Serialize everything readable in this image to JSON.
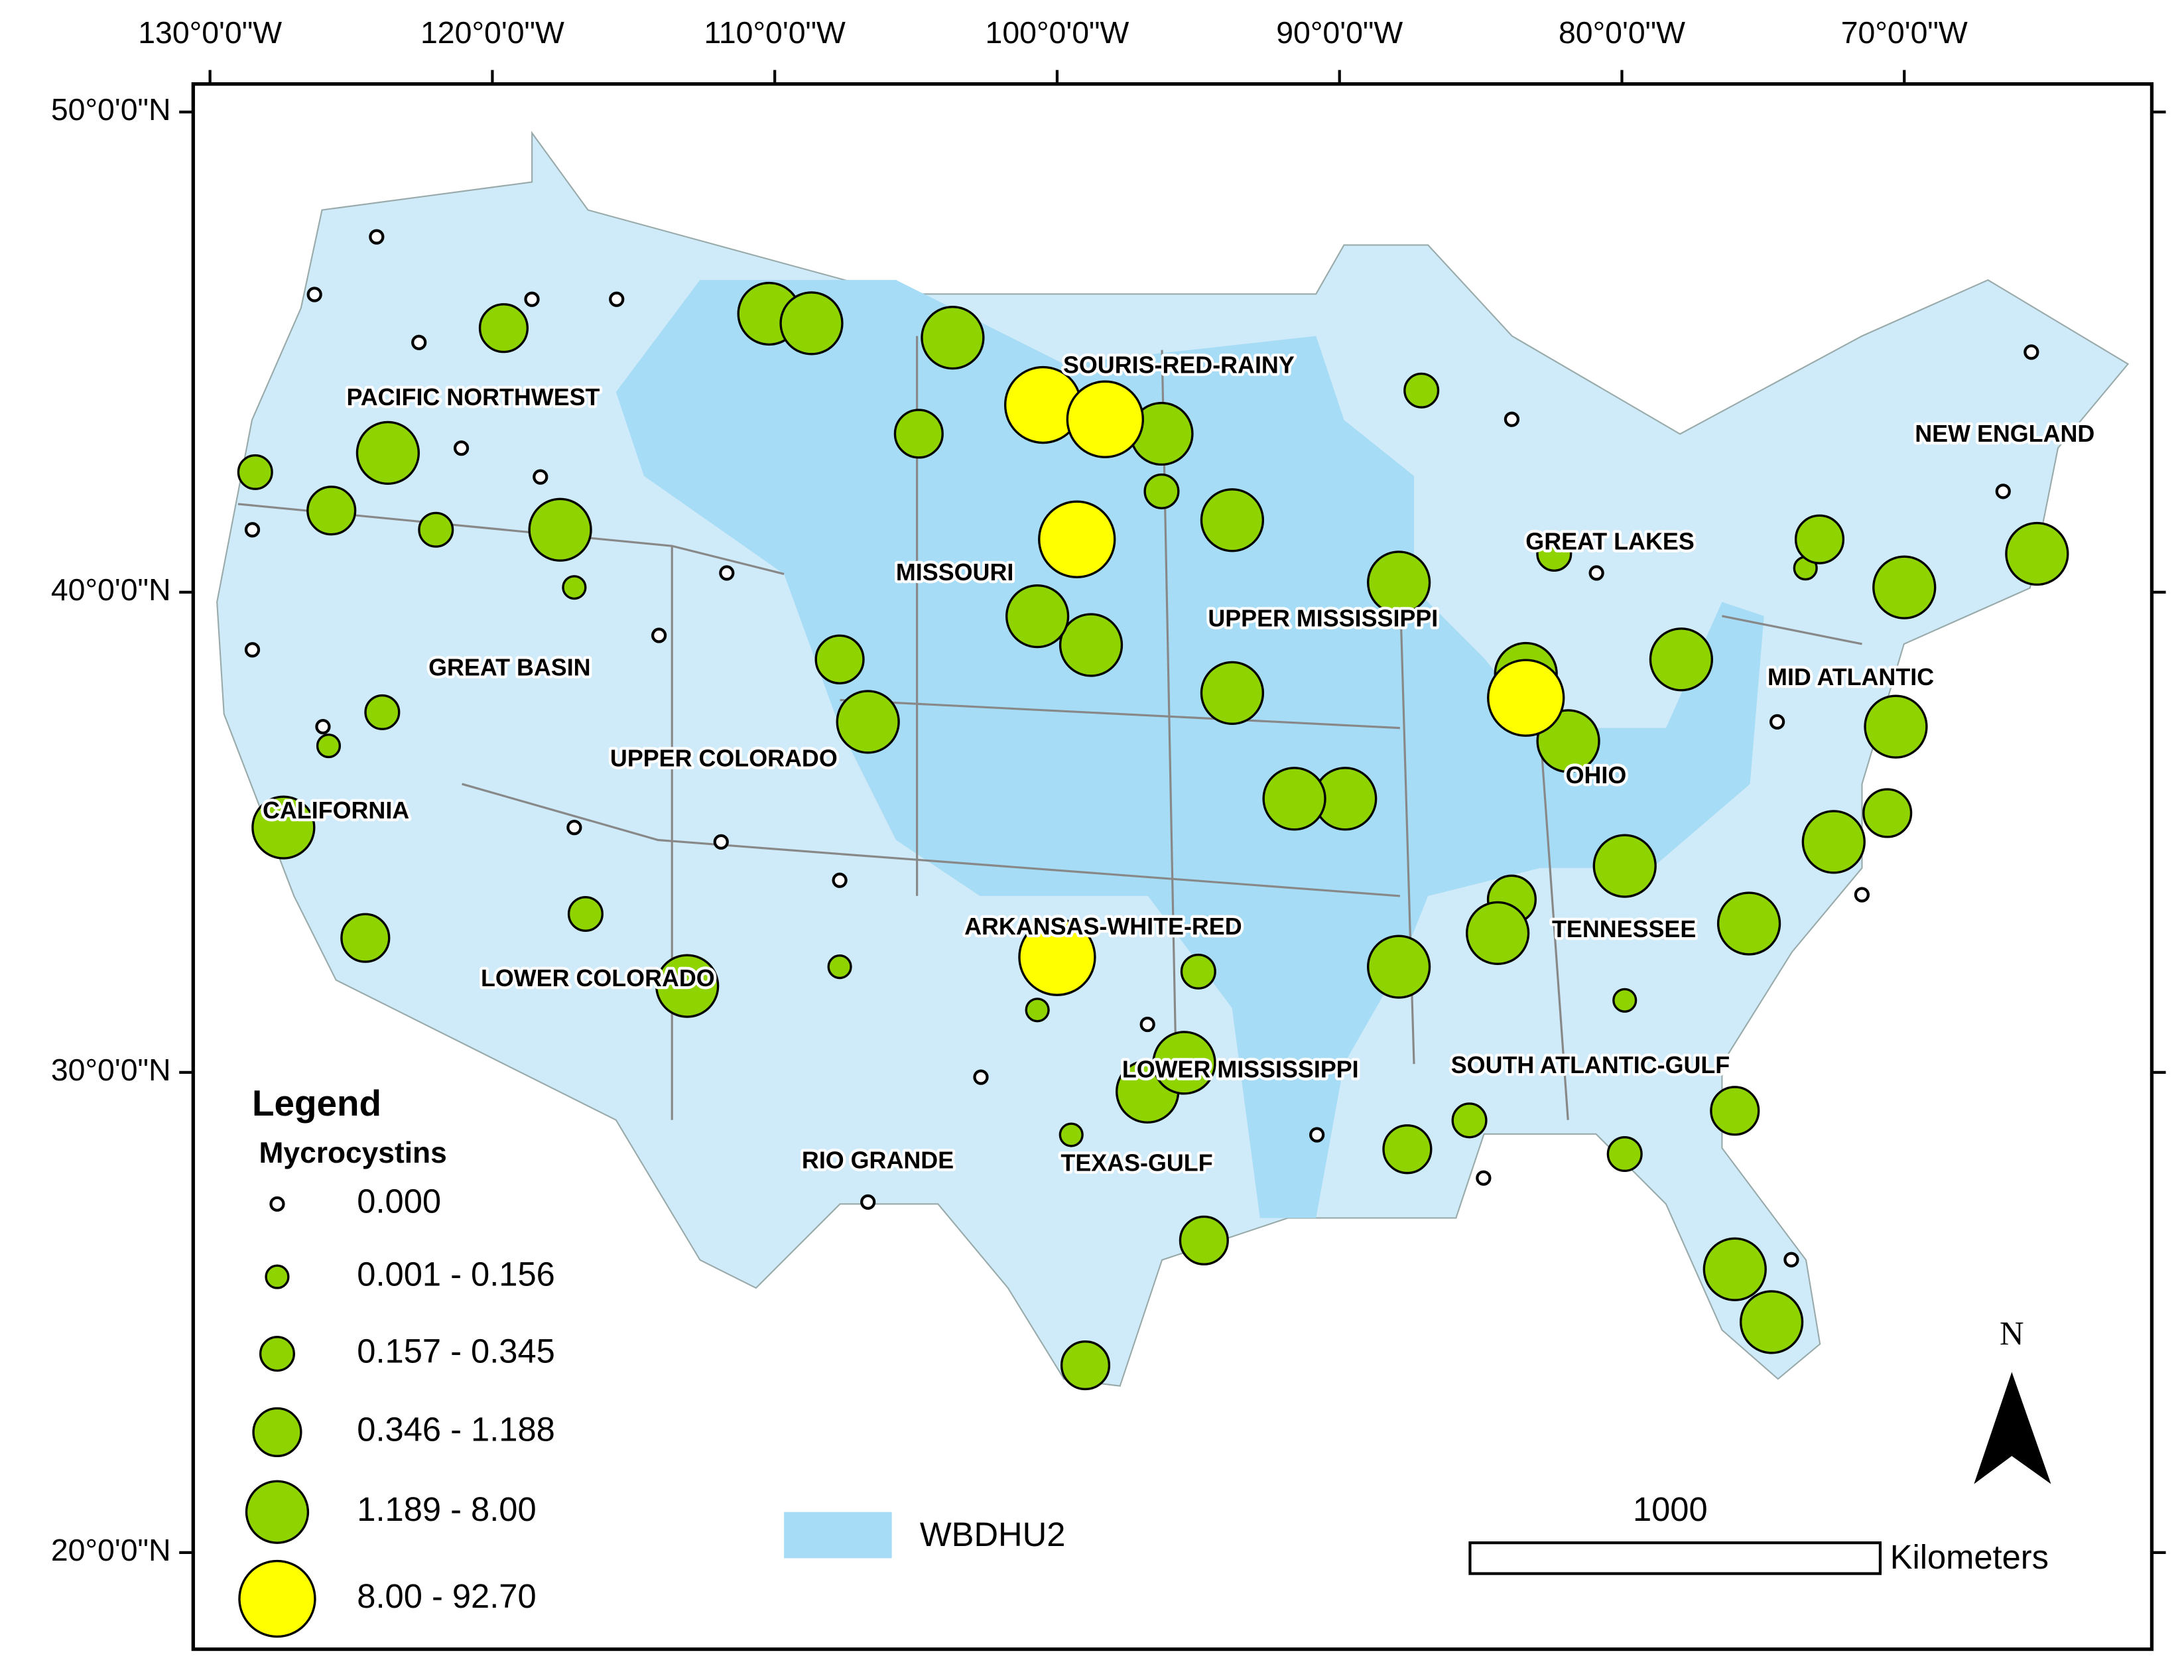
{
  "map": {
    "xticks": [
      {
        "value": -130,
        "label": "130°0'0\"W"
      },
      {
        "value": -120,
        "label": "120°0'0\"W"
      },
      {
        "value": -110,
        "label": "110°0'0\"W"
      },
      {
        "value": -100,
        "label": "100°0'0\"W"
      },
      {
        "value": -90,
        "label": "90°0'0\"W"
      },
      {
        "value": -80,
        "label": "80°0'0\"W"
      },
      {
        "value": -70,
        "label": "70°0'0\"W"
      }
    ],
    "yticks": [
      {
        "value": 50,
        "label": "50°0'0\"N"
      },
      {
        "value": 40,
        "label": "40°0'0\"N"
      },
      {
        "value": 30,
        "label": "30°0'0\"N"
      },
      {
        "value": 20,
        "label": "20°0'0\"N"
      }
    ],
    "regions": [
      "PACIFIC NORTHWEST",
      "SOURIS-RED-RAINY",
      "NEW ENGLAND",
      "GREAT LAKES",
      "MISSOURI",
      "UPPER MISSISSIPPI",
      "GREAT BASIN",
      "MID ATLANTIC",
      "UPPER COLORADO",
      "OHIO",
      "CALIFORNIA",
      "ARKANSAS-WHITE-RED",
      "TENNESSEE",
      "LOWER COLORADO",
      "LOWER MISSISSIPPI",
      "SOUTH ATLANTIC-GULF",
      "RIO GRANDE",
      "TEXAS-GULF"
    ],
    "legend": {
      "title": "Legend",
      "subtitle": "Mycrocystins",
      "classes": [
        {
          "label": "0.000",
          "color": "#ffffff",
          "sites": [
            [
              -126.3,
              46.2
            ],
            [
              -124.1,
              47.4
            ],
            [
              -122.6,
              45.2
            ],
            [
              -118.6,
              46.1
            ],
            [
              -115.6,
              46.1
            ],
            [
              -121.1,
              43.0
            ],
            [
              -118.3,
              42.4
            ],
            [
              -111.7,
              40.4
            ],
            [
              -114.1,
              39.1
            ],
            [
              -128.5,
              38.8
            ],
            [
              -126.0,
              37.2
            ],
            [
              -117.1,
              35.1
            ],
            [
              -111.9,
              34.8
            ],
            [
              -107.7,
              34.0
            ],
            [
              -102.7,
              29.9
            ],
            [
              -106.7,
              27.3
            ],
            [
              -83.9,
              43.6
            ],
            [
              -80.9,
              40.4
            ],
            [
              -74.5,
              37.3
            ],
            [
              -66.5,
              42.1
            ],
            [
              -65.5,
              45.0
            ],
            [
              -71.5,
              33.7
            ],
            [
              -90.8,
              28.7
            ],
            [
              -74.0,
              26.1
            ],
            [
              -84.9,
              27.8
            ],
            [
              -96.8,
              31.0
            ],
            [
              -128.5,
              41.3
            ]
          ]
        },
        {
          "label": "0.001 - 0.156",
          "color": "#8fd400",
          "sites": [
            [
              -117.1,
              40.1
            ],
            [
              -73.5,
              40.5
            ],
            [
              -99.5,
              28.7
            ],
            [
              -107.7,
              32.2
            ],
            [
              -79.9,
              31.5
            ],
            [
              -82.7,
              37.6
            ],
            [
              -100.7,
              31.3
            ],
            [
              -125.8,
              36.8
            ]
          ]
        },
        {
          "label": "0.157 - 0.345",
          "color": "#8fd400",
          "sites": [
            [
              -128.4,
              42.5
            ],
            [
              -122.0,
              41.3
            ],
            [
              -123.9,
              37.5
            ],
            [
              -87.1,
              44.2
            ],
            [
              -95.0,
              32.1
            ],
            [
              -85.4,
              29.0
            ],
            [
              -79.9,
              28.3
            ],
            [
              -116.7,
              33.3
            ],
            [
              -96.3,
              42.1
            ],
            [
              -82.4,
              40.8
            ]
          ]
        },
        {
          "label": "0.346 - 1.188",
          "color": "#8fd400",
          "sites": [
            [
              -125.7,
              41.7
            ],
            [
              -119.6,
              45.5
            ],
            [
              -73.0,
              41.1
            ],
            [
              -76.0,
              29.2
            ],
            [
              -94.8,
              26.5
            ],
            [
              -87.6,
              28.4
            ],
            [
              -99.0,
              23.9
            ],
            [
              -104.9,
              43.3
            ],
            [
              -107.7,
              38.6
            ],
            [
              -83.9,
              33.6
            ],
            [
              -70.6,
              35.4
            ],
            [
              -124.5,
              32.8
            ]
          ]
        },
        {
          "label": "1.189 - 8.00",
          "color": "#8fd400",
          "sites": [
            [
              -123.7,
              42.9
            ],
            [
              -117.6,
              41.3
            ],
            [
              -127.4,
              35.1
            ],
            [
              -106.7,
              37.3
            ],
            [
              -75.5,
              33.1
            ],
            [
              -79.9,
              34.3
            ],
            [
              -72.5,
              34.8
            ],
            [
              -65.3,
              40.8
            ],
            [
              -70.0,
              40.1
            ],
            [
              -76.0,
              25.9
            ],
            [
              -74.7,
              24.8
            ],
            [
              -77.9,
              38.6
            ],
            [
              -93.8,
              37.9
            ],
            [
              -89.8,
              35.7
            ],
            [
              -98.8,
              38.9
            ],
            [
              -91.6,
              35.7
            ],
            [
              -87.9,
              32.2
            ],
            [
              -84.4,
              32.9
            ],
            [
              -110.2,
              45.8
            ],
            [
              -108.7,
              45.6
            ],
            [
              -103.7,
              45.3
            ],
            [
              -96.3,
              43.3
            ],
            [
              -93.8,
              41.5
            ],
            [
              -100.7,
              39.5
            ],
            [
              -87.9,
              40.2
            ],
            [
              -113.1,
              31.8
            ],
            [
              -96.8,
              29.6
            ],
            [
              -95.5,
              30.2
            ],
            [
              -70.3,
              37.2
            ],
            [
              -83.4,
              38.3
            ],
            [
              -81.9,
              36.9
            ]
          ]
        },
        {
          "label": "8.00 - 92.70",
          "color": "#ffff00",
          "sites": [
            [
              -100.5,
              43.9
            ],
            [
              -99.3,
              41.1
            ],
            [
              -100.0,
              32.4
            ],
            [
              -83.4,
              37.8
            ],
            [
              -98.3,
              43.6
            ]
          ]
        }
      ],
      "basin_label": "WBDHU2"
    },
    "scale": {
      "distance": "1000",
      "unit": "Kilometers"
    },
    "north": "N"
  }
}
